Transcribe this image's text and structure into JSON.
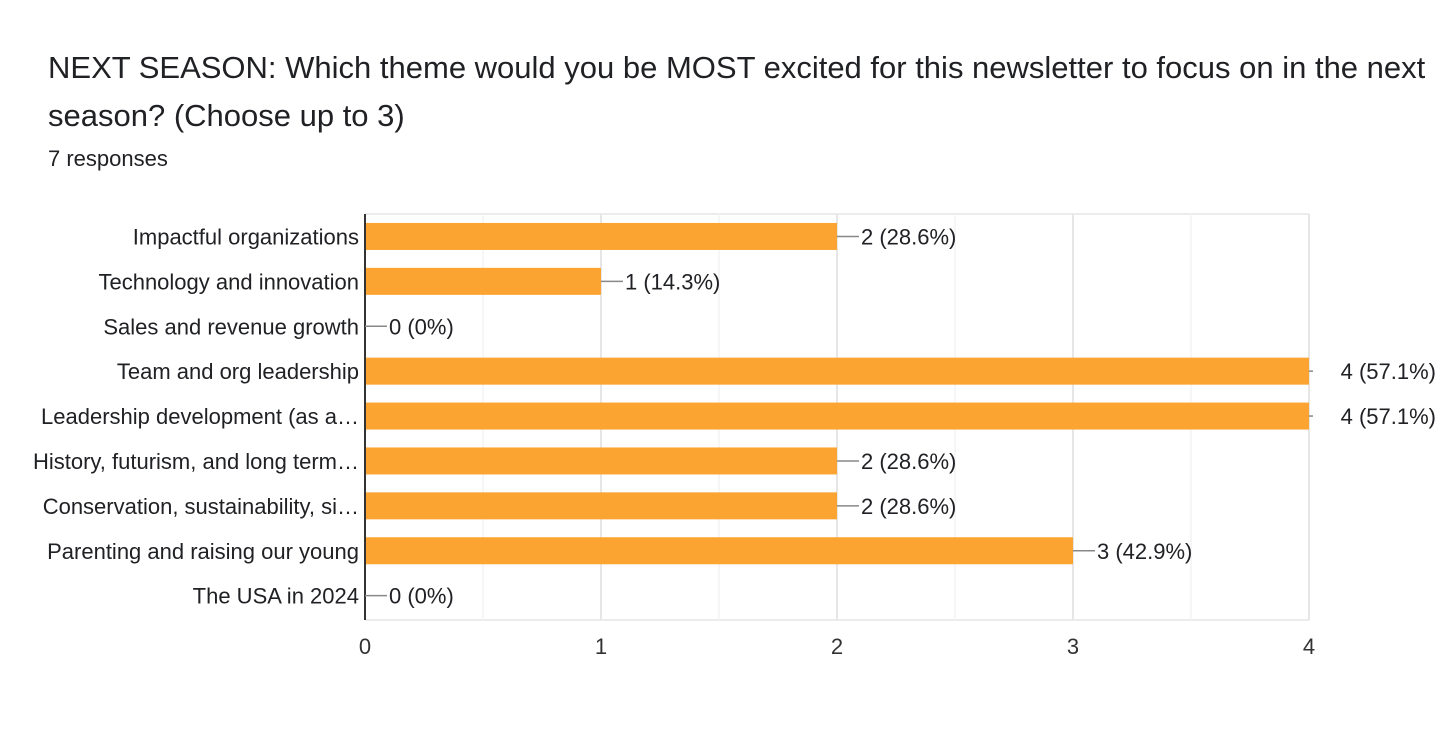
{
  "question": {
    "title": "NEXT SEASON: Which theme would you be MOST excited for this newsletter to focus on in the next season?  (Choose up to 3)",
    "responses": "7 responses"
  },
  "colors": {
    "bar": "#FBA431",
    "grid": "#ececec",
    "axis": "#333333",
    "leader": "#888888",
    "text": "#202124"
  },
  "chart_data": {
    "type": "bar",
    "orientation": "horizontal",
    "categories": [
      "Impactful organizations",
      "Technology and innovation",
      "Sales and revenue growth",
      "Team and org leadership",
      "Leadership development (as a…",
      "History, futurism, and long term…",
      "Conservation, sustainability, si…",
      "Parenting and raising our young",
      "The USA in 2024"
    ],
    "values": [
      2,
      1,
      0,
      4,
      4,
      2,
      2,
      3,
      0
    ],
    "data_labels": [
      "2 (28.6%)",
      "1 (14.3%)",
      "0 (0%)",
      "4 (57.1%)",
      "4 (57.1%)",
      "2 (28.6%)",
      "2 (28.6%)",
      "3 (42.9%)",
      "0 (0%)"
    ],
    "x_ticks": [
      "0",
      "1",
      "2",
      "3",
      "4"
    ],
    "xlim": [
      0,
      4
    ],
    "grid": true,
    "legend": "none"
  }
}
